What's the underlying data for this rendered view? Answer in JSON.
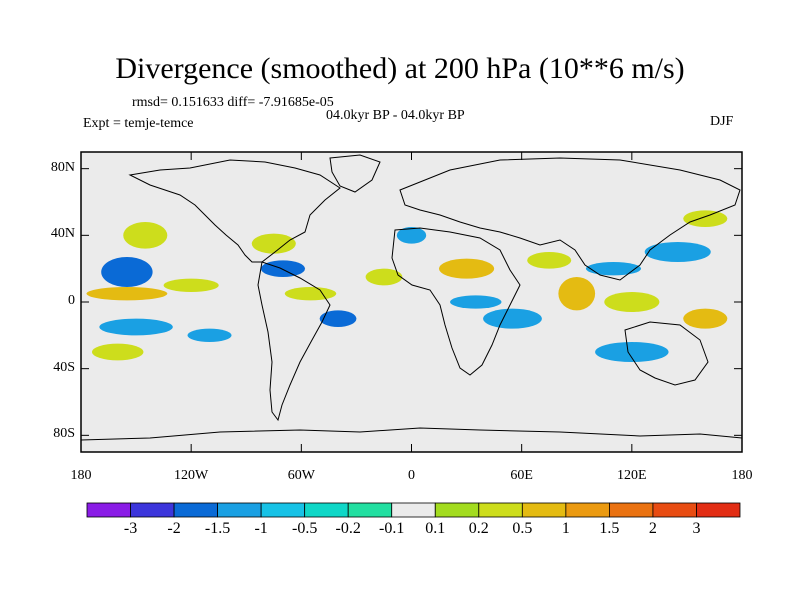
{
  "title": "Divergence (smoothed) at 200 hPa (10**6 m/s)",
  "stats_text": "rmsd= 0.151633 diff= -7.91685e-05",
  "period_text": "04.0kyr BP - 04.0kyr BP",
  "experiment_text": "Expt = temje-temce",
  "season_text": "DJF",
  "map": {
    "projection": "cylindrical-equidistant",
    "lon_range": [
      -180,
      180
    ],
    "lat_range": [
      -90,
      90
    ],
    "lat_ticks": [
      "80N",
      "40N",
      "0",
      "40S",
      "80S"
    ],
    "lon_ticks": [
      "180",
      "120W",
      "60W",
      "0",
      "60E",
      "120E",
      "180"
    ],
    "land_color": "#ebebeb"
  },
  "colorbar": {
    "colors": [
      "#8a1ce6",
      "#3c35db",
      "#0a6ad6",
      "#1aa0e3",
      "#17c2e6",
      "#0fd7c7",
      "#22dfa1",
      "#ebebeb",
      "#a3dc1f",
      "#cddd1c",
      "#e4bb12",
      "#eb9a11",
      "#ea7211",
      "#e84c12",
      "#e22d14"
    ],
    "labels": [
      "-3",
      "-2",
      "-1.5",
      "-1",
      "-0.5",
      "-0.2",
      "-0.1",
      "0.1",
      "0.2",
      "0.5",
      "1",
      "1.5",
      "2",
      "3"
    ]
  },
  "regions": [
    {
      "lon": -155,
      "lat": 18,
      "rx": 14,
      "ry": 9,
      "level": 2
    },
    {
      "lon": -145,
      "lat": 40,
      "rx": 12,
      "ry": 8,
      "level": 9
    },
    {
      "lon": -155,
      "lat": 5,
      "rx": 22,
      "ry": 4,
      "level": 10
    },
    {
      "lon": -150,
      "lat": -15,
      "rx": 20,
      "ry": 5,
      "level": 3
    },
    {
      "lon": -160,
      "lat": -30,
      "rx": 14,
      "ry": 5,
      "level": 9
    },
    {
      "lon": -120,
      "lat": 10,
      "rx": 15,
      "ry": 4,
      "level": 9
    },
    {
      "lon": -110,
      "lat": -20,
      "rx": 12,
      "ry": 4,
      "level": 3
    },
    {
      "lon": -75,
      "lat": 35,
      "rx": 12,
      "ry": 6,
      "level": 9
    },
    {
      "lon": -70,
      "lat": 20,
      "rx": 12,
      "ry": 5,
      "level": 2
    },
    {
      "lon": -55,
      "lat": 5,
      "rx": 14,
      "ry": 4,
      "level": 9
    },
    {
      "lon": -40,
      "lat": -10,
      "rx": 10,
      "ry": 5,
      "level": 2
    },
    {
      "lon": -15,
      "lat": 15,
      "rx": 10,
      "ry": 5,
      "level": 9
    },
    {
      "lon": 0,
      "lat": 40,
      "rx": 8,
      "ry": 5,
      "level": 3
    },
    {
      "lon": 30,
      "lat": 20,
      "rx": 15,
      "ry": 6,
      "level": 10
    },
    {
      "lon": 35,
      "lat": 0,
      "rx": 14,
      "ry": 4,
      "level": 3
    },
    {
      "lon": 55,
      "lat": -10,
      "rx": 16,
      "ry": 6,
      "level": 3
    },
    {
      "lon": 75,
      "lat": 25,
      "rx": 12,
      "ry": 5,
      "level": 9
    },
    {
      "lon": 90,
      "lat": 5,
      "rx": 10,
      "ry": 10,
      "level": 10
    },
    {
      "lon": 110,
      "lat": 20,
      "rx": 15,
      "ry": 4,
      "level": 3
    },
    {
      "lon": 120,
      "lat": 0,
      "rx": 15,
      "ry": 6,
      "level": 9
    },
    {
      "lon": 145,
      "lat": 30,
      "rx": 18,
      "ry": 6,
      "level": 3
    },
    {
      "lon": 160,
      "lat": -10,
      "rx": 12,
      "ry": 6,
      "level": 10
    },
    {
      "lon": 120,
      "lat": -30,
      "rx": 20,
      "ry": 6,
      "level": 3
    },
    {
      "lon": 160,
      "lat": 50,
      "rx": 12,
      "ry": 5,
      "level": 9
    }
  ]
}
